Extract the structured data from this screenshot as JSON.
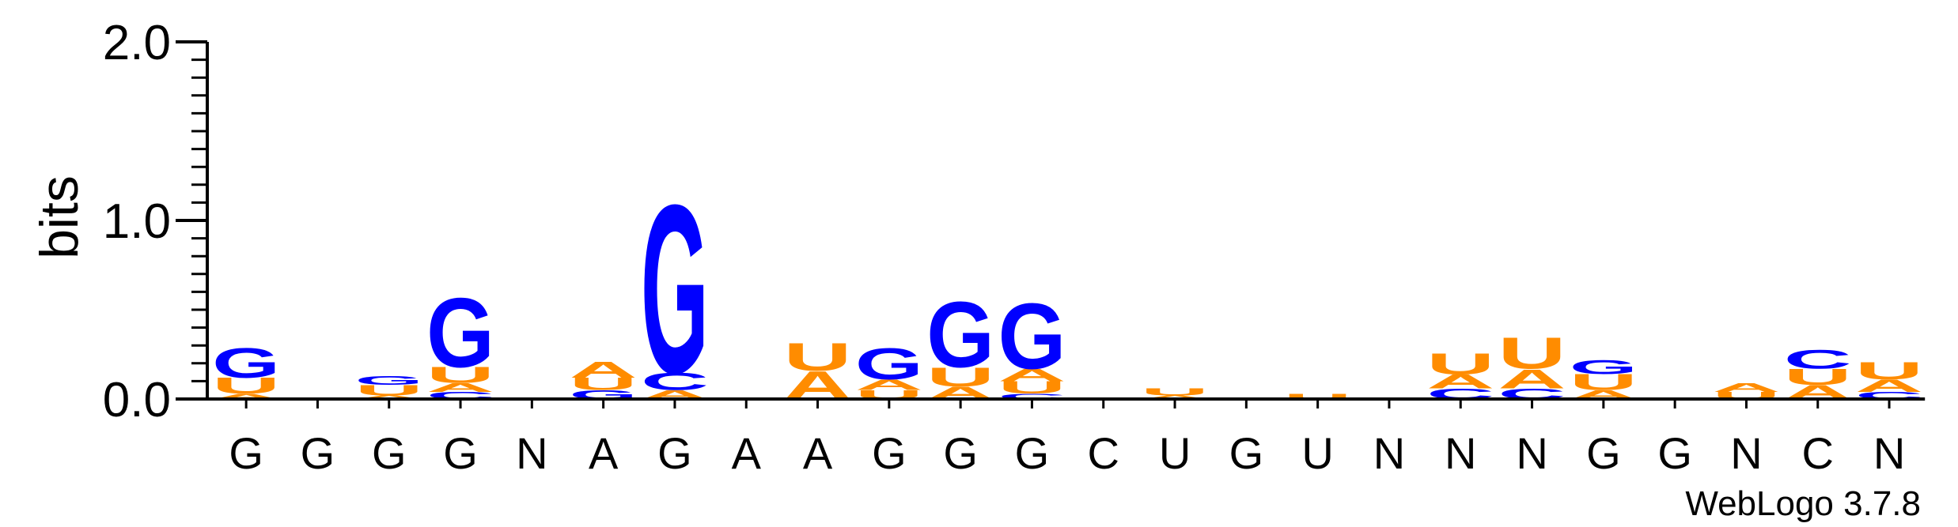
{
  "chart_data": {
    "type": "sequence-logo",
    "ylabel": "bits",
    "ylim": [
      0,
      2.0
    ],
    "yticks": [
      {
        "value": 0.0,
        "label": "0.0"
      },
      {
        "value": 1.0,
        "label": "1.0"
      },
      {
        "value": 2.0,
        "label": "2.0"
      }
    ],
    "positions": [
      "G",
      "G",
      "G",
      "G",
      "N",
      "A",
      "G",
      "A",
      "A",
      "G",
      "G",
      "G",
      "C",
      "U",
      "G",
      "U",
      "N",
      "N",
      "N",
      "G",
      "G",
      "N",
      "C",
      "N"
    ],
    "stacks": [
      [
        {
          "letter": "A",
          "bits": 0.03
        },
        {
          "letter": "U",
          "bits": 0.09
        },
        {
          "letter": "G",
          "bits": 0.17
        }
      ],
      [],
      [
        {
          "letter": "A",
          "bits": 0.02
        },
        {
          "letter": "U",
          "bits": 0.06
        },
        {
          "letter": "G",
          "bits": 0.05
        }
      ],
      [
        {
          "letter": "C",
          "bits": 0.04
        },
        {
          "letter": "A",
          "bits": 0.05
        },
        {
          "letter": "U",
          "bits": 0.09
        },
        {
          "letter": "G",
          "bits": 0.4
        }
      ],
      [],
      [
        {
          "letter": "G",
          "bits": 0.05
        },
        {
          "letter": "U",
          "bits": 0.07
        },
        {
          "letter": "A",
          "bits": 0.09
        }
      ],
      [
        {
          "letter": "A",
          "bits": 0.05
        },
        {
          "letter": "C",
          "bits": 0.1
        },
        {
          "letter": "G",
          "bits": 0.97
        }
      ],
      [],
      [
        {
          "letter": "A",
          "bits": 0.16
        },
        {
          "letter": "U",
          "bits": 0.16
        }
      ],
      [
        {
          "letter": "U",
          "bits": 0.05
        },
        {
          "letter": "A",
          "bits": 0.06
        },
        {
          "letter": "G",
          "bits": 0.18
        }
      ],
      [
        {
          "letter": "A",
          "bits": 0.07
        },
        {
          "letter": "U",
          "bits": 0.11
        },
        {
          "letter": "G",
          "bits": 0.38
        }
      ],
      [
        {
          "letter": "C",
          "bits": 0.03
        },
        {
          "letter": "U",
          "bits": 0.07
        },
        {
          "letter": "A",
          "bits": 0.07
        },
        {
          "letter": "G",
          "bits": 0.38
        }
      ],
      [],
      [
        {
          "letter": "A",
          "bits": 0.02
        },
        {
          "letter": "U",
          "bits": 0.04
        }
      ],
      [],
      [
        {
          "letter": "U",
          "bits": 0.03
        }
      ],
      [],
      [
        {
          "letter": "C",
          "bits": 0.06
        },
        {
          "letter": "A",
          "bits": 0.08
        },
        {
          "letter": "U",
          "bits": 0.12
        }
      ],
      [
        {
          "letter": "C",
          "bits": 0.06
        },
        {
          "letter": "A",
          "bits": 0.11
        },
        {
          "letter": "U",
          "bits": 0.18
        }
      ],
      [
        {
          "letter": "A",
          "bits": 0.05
        },
        {
          "letter": "U",
          "bits": 0.09
        },
        {
          "letter": "G",
          "bits": 0.08
        }
      ],
      [],
      [
        {
          "letter": "U",
          "bits": 0.04
        },
        {
          "letter": "A",
          "bits": 0.05
        }
      ],
      [
        {
          "letter": "A",
          "bits": 0.08
        },
        {
          "letter": "U",
          "bits": 0.09
        },
        {
          "letter": "C",
          "bits": 0.11
        }
      ],
      [
        {
          "letter": "C",
          "bits": 0.04
        },
        {
          "letter": "A",
          "bits": 0.07
        },
        {
          "letter": "U",
          "bits": 0.1
        }
      ]
    ],
    "colors": {
      "G": "#0000ff",
      "C": "#0000ff",
      "A": "#ff8c00",
      "U": "#ff8c00"
    },
    "grid": false,
    "legend": "none"
  },
  "footer": {
    "credit": "WebLogo 3.7.8"
  }
}
